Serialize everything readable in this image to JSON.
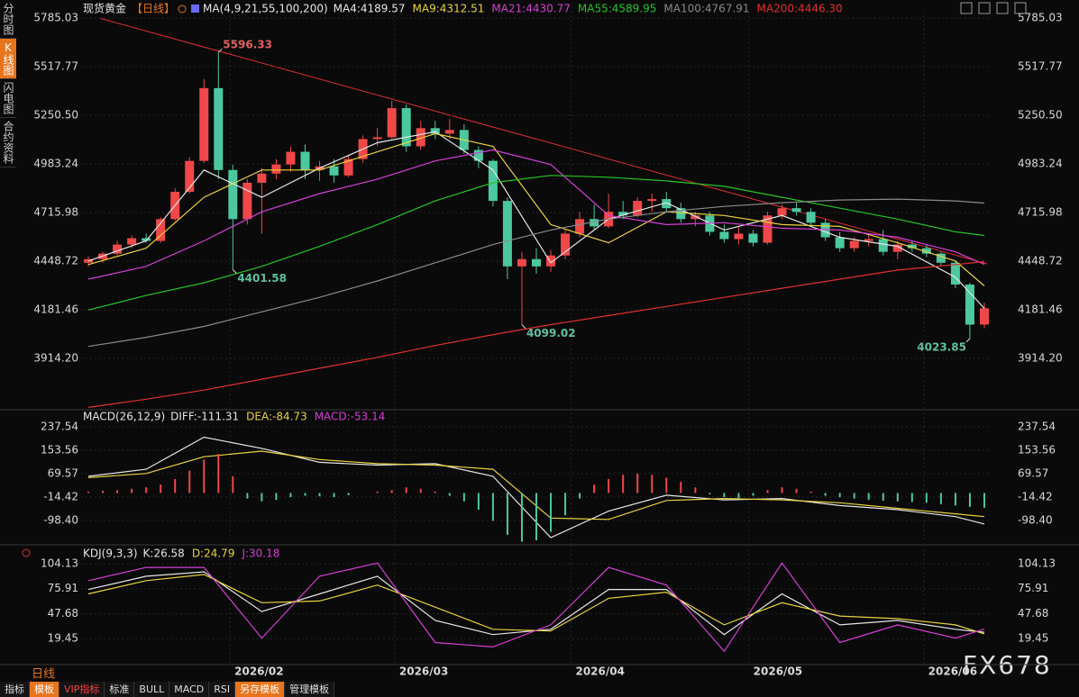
{
  "sidebar": [
    "分时图",
    "K线图",
    "闪电图",
    "合约资料"
  ],
  "toolbar": [
    "指标",
    "模板",
    "VIP指标",
    "标准",
    "BULL",
    "MACD",
    "RSI",
    "另存模板",
    "管理模板"
  ],
  "period_label": "日线",
  "watermark": "FX678",
  "chart_data": [
    {
      "type": "candlestick",
      "title": "现货黄金",
      "period": "【日线】",
      "indicator": "MA(4,9,21,55,100,200)",
      "up_color": "#f04848",
      "down_color": "#4cc8a0",
      "xlim": [
        -0.5,
        62.5
      ],
      "xticks": [
        {
          "value": 9.8,
          "label": "2026/02"
        },
        {
          "value": 21.2,
          "label": "2026/03"
        },
        {
          "value": 33.4,
          "label": "2026/04"
        },
        {
          "value": 45.7,
          "label": "2026/05"
        },
        {
          "value": 57.8,
          "label": "2026/06"
        }
      ],
      "ylim": [
        3632,
        5825
      ],
      "yticks": [
        5785.03,
        5517.77,
        {
          "value": 5250.5,
          "label": "5250.50"
        },
        4983.24,
        4715.98,
        4448.72,
        4181.46,
        {
          "value": 3914.2,
          "label": "3914.20"
        }
      ],
      "open": [
        4440,
        4460,
        4490,
        4540,
        4575,
        4560,
        4680,
        4830,
        5000,
        5400,
        4950,
        4680,
        4880,
        4930,
        4980,
        5050,
        4950,
        4970,
        4920,
        5010,
        5120,
        5130,
        5290,
        5080,
        5180,
        5150,
        5170,
        5060,
        5000,
        4780,
        4420,
        4460,
        4420,
        4480,
        4600,
        4680,
        4640,
        4720,
        4700,
        4780,
        4790,
        4740,
        4680,
        4700,
        4610,
        4570,
        4600,
        4550,
        4700,
        4740,
        4720,
        4660,
        4580,
        4520,
        4560,
        4570,
        4500,
        4540,
        4520,
        4490,
        4440,
        4320,
        4100
      ],
      "high": [
        4475,
        4500,
        4560,
        4590,
        4600,
        4690,
        4850,
        5020,
        5450,
        5596.33,
        4980,
        4900,
        4960,
        5010,
        5080,
        5090,
        5000,
        5010,
        5030,
        5140,
        5180,
        5330,
        5310,
        5220,
        5220,
        5230,
        5200,
        5080,
        5010,
        4800,
        4500,
        4520,
        4510,
        4620,
        4720,
        4760,
        4820,
        4780,
        4800,
        4820,
        4830,
        4770,
        4720,
        4720,
        4650,
        4640,
        4620,
        4720,
        4760,
        4770,
        4740,
        4680,
        4610,
        4580,
        4600,
        4620,
        4560,
        4560,
        4540,
        4500,
        4450,
        4330,
        4220
      ],
      "low": [
        4420,
        4440,
        4480,
        4520,
        4550,
        4550,
        4670,
        4820,
        4990,
        4900,
        4401.58,
        4650,
        4600,
        4900,
        4940,
        4900,
        4890,
        4880,
        4910,
        4990,
        5080,
        5120,
        5050,
        5060,
        5120,
        5120,
        5040,
        4960,
        4750,
        4350,
        4099.02,
        4380,
        4390,
        4460,
        4580,
        4620,
        4630,
        4680,
        4690,
        4720,
        4720,
        4660,
        4640,
        4590,
        4550,
        4540,
        4530,
        4540,
        4680,
        4700,
        4640,
        4560,
        4500,
        4500,
        4530,
        4480,
        4460,
        4500,
        4470,
        4420,
        4300,
        4023.85,
        4080
      ],
      "close": [
        4460,
        4490,
        4540,
        4575,
        4560,
        4680,
        4830,
        5000,
        5400,
        4950,
        4680,
        4880,
        4930,
        4980,
        5050,
        4950,
        4970,
        4920,
        5010,
        5120,
        5130,
        5290,
        5080,
        5180,
        5150,
        5170,
        5060,
        5000,
        4780,
        4420,
        4460,
        4420,
        4480,
        4600,
        4680,
        4640,
        4720,
        4700,
        4780,
        4790,
        4740,
        4680,
        4700,
        4610,
        4570,
        4600,
        4550,
        4700,
        4740,
        4720,
        4660,
        4580,
        4520,
        4560,
        4570,
        4500,
        4540,
        4520,
        4490,
        4440,
        4320,
        4100,
        4190
      ],
      "annotations": [
        {
          "label": "5596.33",
          "value": 5596.33,
          "index": 9
        },
        {
          "label": "4401.58",
          "value": 4401.58,
          "index": 10
        },
        {
          "label": "4099.02",
          "value": 4099.02,
          "index": 30
        },
        {
          "label": "4023.85",
          "value": 4023.85,
          "index": 61
        }
      ],
      "series": [
        {
          "name": "MA4:4189.57",
          "color": "#e6e6e6",
          "x": [
            0,
            4,
            8,
            12,
            16,
            20,
            24,
            28,
            32,
            36,
            40,
            44,
            48,
            52,
            56,
            60,
            62
          ],
          "values": [
            4450,
            4560,
            4950,
            4800,
            4960,
            5100,
            5160,
            4950,
            4440,
            4680,
            4770,
            4620,
            4700,
            4580,
            4530,
            4360,
            4189.57
          ]
        },
        {
          "name": "MA9:4312.51",
          "color": "#e8d33f",
          "x": [
            0,
            4,
            8,
            12,
            16,
            20,
            24,
            28,
            32,
            36,
            40,
            44,
            48,
            52,
            56,
            60,
            62
          ],
          "values": [
            4430,
            4520,
            4800,
            4950,
            4950,
            5050,
            5150,
            5080,
            4650,
            4550,
            4720,
            4700,
            4650,
            4640,
            4550,
            4450,
            4312.51
          ]
        },
        {
          "name": "MA21:4430.77",
          "color": "#d63fd6",
          "x": [
            0,
            4,
            8,
            12,
            16,
            20,
            24,
            28,
            32,
            36,
            40,
            44,
            48,
            52,
            56,
            60,
            62
          ],
          "values": [
            4350,
            4420,
            4560,
            4720,
            4820,
            4900,
            5000,
            5060,
            4980,
            4700,
            4650,
            4660,
            4630,
            4620,
            4580,
            4500,
            4430.77
          ]
        },
        {
          "name": "MA55:4589.95",
          "color": "#27c427",
          "x": [
            0,
            4,
            8,
            12,
            16,
            20,
            24,
            28,
            32,
            36,
            40,
            44,
            48,
            52,
            56,
            60,
            62
          ],
          "values": [
            4180,
            4260,
            4330,
            4420,
            4530,
            4650,
            4780,
            4880,
            4920,
            4910,
            4890,
            4860,
            4800,
            4740,
            4680,
            4610,
            4589.95
          ]
        },
        {
          "name": "MA100:4767.91",
          "color": "#8a8a8a",
          "x": [
            0,
            4,
            8,
            12,
            16,
            20,
            24,
            28,
            32,
            36,
            40,
            44,
            48,
            52,
            56,
            60,
            62
          ],
          "values": [
            3980,
            4030,
            4090,
            4170,
            4250,
            4340,
            4440,
            4540,
            4620,
            4680,
            4720,
            4750,
            4770,
            4785,
            4790,
            4780,
            4767.91
          ]
        },
        {
          "name": "MA200:4446.30",
          "color": "#e03030",
          "x": [
            0,
            4,
            8,
            12,
            16,
            20,
            24,
            28,
            32,
            36,
            40,
            44,
            48,
            52,
            56,
            60,
            62
          ],
          "values": [
            3645,
            3690,
            3740,
            3800,
            3860,
            3920,
            3985,
            4045,
            4100,
            4150,
            4200,
            4250,
            4300,
            4350,
            4400,
            4430,
            4446.3
          ]
        }
      ]
    },
    {
      "type": "macd",
      "title": "MACD(26,12,9)",
      "up_color": "#f04848",
      "down_color": "#4cc8a0",
      "ylim": [
        -186,
        289
      ],
      "yticks": [
        237.54,
        153.56,
        69.57,
        -14.42,
        {
          "value": -98.4,
          "label": "-98.40"
        }
      ],
      "series": [
        {
          "name": "DIFF:-111.31",
          "color": "#e6e6e6",
          "x": [
            0,
            4,
            8,
            12,
            16,
            20,
            24,
            28,
            32,
            36,
            40,
            44,
            48,
            52,
            56,
            60,
            62
          ],
          "values": [
            60,
            85,
            200,
            160,
            110,
            100,
            105,
            60,
            -160,
            -65,
            -8,
            -25,
            -20,
            -45,
            -60,
            -85,
            -111.31
          ]
        },
        {
          "name": "DEA:-84.73",
          "color": "#e8d33f",
          "x": [
            0,
            4,
            8,
            12,
            16,
            20,
            24,
            28,
            32,
            36,
            40,
            44,
            48,
            52,
            56,
            60,
            62
          ],
          "values": [
            55,
            70,
            130,
            150,
            120,
            105,
            100,
            85,
            -90,
            -95,
            -27,
            -20,
            -25,
            -35,
            -55,
            -75,
            -84.73
          ]
        },
        {
          "name": "MACD:-53.14",
          "color": "#d63fd6",
          "style": "bar",
          "values": [
            5,
            8,
            10,
            15,
            20,
            30,
            50,
            80,
            120,
            140,
            60,
            -20,
            -30,
            -25,
            -15,
            -10,
            -12,
            -15,
            -8,
            0,
            5,
            10,
            20,
            15,
            5,
            -10,
            -30,
            -60,
            -100,
            -150,
            -175,
            -170,
            -140,
            -80,
            -20,
            30,
            50,
            65,
            70,
            65,
            55,
            40,
            20,
            -5,
            -15,
            -20,
            -10,
            10,
            20,
            15,
            5,
            -10,
            -15,
            -20,
            -25,
            -28,
            -30,
            -32,
            -35,
            -40,
            -45,
            -50,
            -53.14
          ]
        }
      ]
    },
    {
      "type": "line",
      "title": "KDJ(9,3,3)",
      "ylim": [
        -10,
        120.5
      ],
      "yticks": [
        104.13,
        75.91,
        47.68,
        19.45
      ],
      "series": [
        {
          "name": "K:26.58",
          "color": "#e6e6e6",
          "x": [
            0,
            4,
            8,
            12,
            16,
            20,
            24,
            28,
            32,
            36,
            40,
            44,
            48,
            52,
            56,
            60,
            62
          ],
          "values": [
            75,
            90,
            95,
            50,
            70,
            90,
            40,
            24,
            30,
            75,
            75,
            24,
            70,
            35,
            40,
            30,
            26.58
          ]
        },
        {
          "name": "D:24.79",
          "color": "#e8d33f",
          "x": [
            0,
            4,
            8,
            12,
            16,
            20,
            24,
            28,
            32,
            36,
            40,
            44,
            48,
            52,
            56,
            60,
            62
          ],
          "values": [
            70,
            85,
            92,
            60,
            62,
            80,
            55,
            30,
            28,
            65,
            72,
            35,
            60,
            45,
            42,
            35,
            24.79
          ]
        },
        {
          "name": "J:30.18",
          "color": "#d63fd6",
          "x": [
            0,
            4,
            8,
            12,
            16,
            20,
            24,
            28,
            32,
            36,
            40,
            44,
            48,
            52,
            56,
            60,
            62
          ],
          "values": [
            85,
            100,
            100,
            20,
            90,
            105,
            15,
            10,
            35,
            100,
            80,
            5,
            105,
            15,
            35,
            20,
            30.18
          ]
        }
      ]
    }
  ]
}
